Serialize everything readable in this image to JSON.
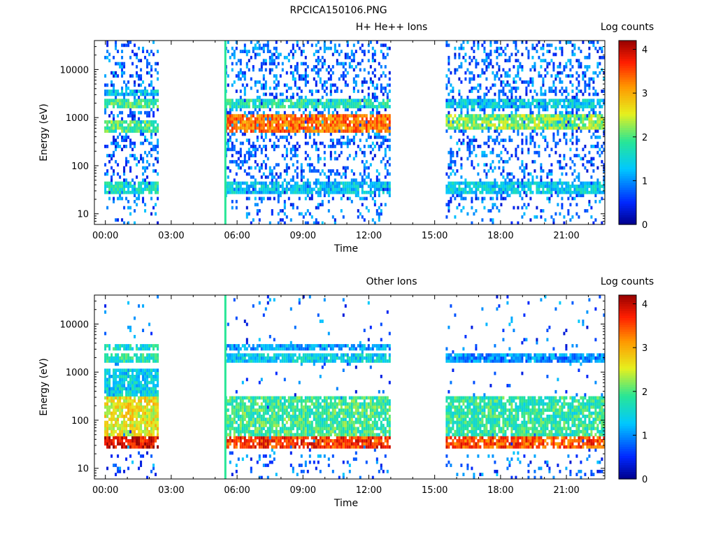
{
  "figure_title": "RPCICA150106.PNG",
  "chart_data": [
    {
      "type": "heatmap",
      "title": "H+ He++ Ions",
      "xlabel": "Time",
      "ylabel": "Energy (eV)",
      "y_scale": "log",
      "ylim": [
        6,
        40000
      ],
      "xlim_hours": [
        -0.5,
        22.75
      ],
      "x_ticks": [
        "00:00",
        "03:00",
        "06:00",
        "09:00",
        "12:00",
        "15:00",
        "18:00",
        "21:00"
      ],
      "y_ticks": [
        "10",
        "100",
        "1000",
        "10000"
      ],
      "colorbar": {
        "label": "Log counts",
        "range": [
          0,
          4.2
        ],
        "ticks": [
          "0",
          "1",
          "2",
          "3",
          "4"
        ]
      },
      "data_intervals_hours": [
        [
          -0.05,
          2.35
        ],
        [
          5.45,
          12.95
        ],
        [
          15.5,
          22.75
        ]
      ],
      "spike_hour": 5.45,
      "features": [
        {
          "segment": 0,
          "energy_range_eV": [
            28,
            45
          ],
          "log_counts": 1.6
        },
        {
          "segment": 0,
          "energy_range_eV": [
            1600,
            2300
          ],
          "log_counts": 1.9
        },
        {
          "segment": 0,
          "energy_range_eV": [
            2800,
            4000
          ],
          "log_counts": 1.3
        },
        {
          "segment": 0,
          "energy_range_eV": [
            500,
            900
          ],
          "log_counts": 2.0
        },
        {
          "segment": 1,
          "energy_range_eV": [
            28,
            45
          ],
          "log_counts": 1.3
        },
        {
          "segment": 1,
          "energy_range_eV": [
            1500,
            2500
          ],
          "log_counts": 1.7
        },
        {
          "segment": 1,
          "energy_range_eV": [
            500,
            1200
          ],
          "log_counts": 3.3
        },
        {
          "segment": 2,
          "energy_range_eV": [
            28,
            45
          ],
          "log_counts": 1.4
        },
        {
          "segment": 2,
          "energy_range_eV": [
            1500,
            2300
          ],
          "log_counts": 1.4
        },
        {
          "segment": 2,
          "energy_range_eV": [
            550,
            1100
          ],
          "log_counts": 2.2
        }
      ]
    },
    {
      "type": "heatmap",
      "title": "Other Ions",
      "xlabel": "Time",
      "ylabel": "Energy (eV)",
      "y_scale": "log",
      "ylim": [
        6,
        40000
      ],
      "xlim_hours": [
        -0.5,
        22.75
      ],
      "x_ticks": [
        "00:00",
        "03:00",
        "06:00",
        "09:00",
        "12:00",
        "15:00",
        "18:00",
        "21:00"
      ],
      "y_ticks": [
        "10",
        "100",
        "1000",
        "10000"
      ],
      "colorbar": {
        "label": "Log counts",
        "range": [
          0,
          4.2
        ],
        "ticks": [
          "0",
          "1",
          "2",
          "3",
          "4"
        ]
      },
      "data_intervals_hours": [
        [
          -0.05,
          2.35
        ],
        [
          5.45,
          12.95
        ],
        [
          15.5,
          22.75
        ]
      ],
      "spike_hour": 5.45,
      "features": [
        {
          "segment": 0,
          "energy_range_eV": [
            28,
            45
          ],
          "log_counts": 3.9
        },
        {
          "segment": 0,
          "energy_range_eV": [
            50,
            300
          ],
          "log_counts": 2.6
        },
        {
          "segment": 0,
          "energy_range_eV": [
            300,
            1200
          ],
          "log_counts": 1.4
        },
        {
          "segment": 0,
          "energy_range_eV": [
            1600,
            2300
          ],
          "log_counts": 1.7
        },
        {
          "segment": 0,
          "energy_range_eV": [
            2800,
            4000
          ],
          "log_counts": 1.6
        },
        {
          "segment": 1,
          "energy_range_eV": [
            28,
            45
          ],
          "log_counts": 3.6
        },
        {
          "segment": 1,
          "energy_range_eV": [
            50,
            300
          ],
          "log_counts": 1.9
        },
        {
          "segment": 1,
          "energy_range_eV": [
            1600,
            2300
          ],
          "log_counts": 1.4
        },
        {
          "segment": 1,
          "energy_range_eV": [
            2800,
            4000
          ],
          "log_counts": 1.1
        },
        {
          "segment": 2,
          "energy_range_eV": [
            28,
            45
          ],
          "log_counts": 3.5
        },
        {
          "segment": 2,
          "energy_range_eV": [
            50,
            300
          ],
          "log_counts": 1.8
        },
        {
          "segment": 2,
          "energy_range_eV": [
            1600,
            2300
          ],
          "log_counts": 1.0
        }
      ]
    }
  ]
}
